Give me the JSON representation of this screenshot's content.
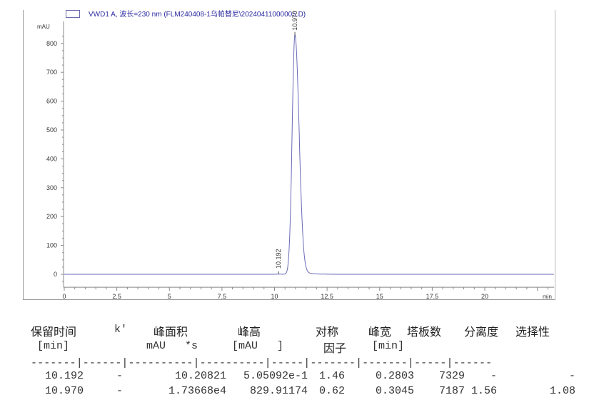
{
  "chart_data": {
    "type": "line",
    "legend": "VWD1 A, 波长=230 nm (FLM240408-1乌帕替尼\\20240411000005.D)",
    "ylabel": "mAU",
    "xlabel": "min",
    "xlim": [
      0,
      23.3
    ],
    "ylim": [
      -45,
      850
    ],
    "xticks": [
      0,
      2.5,
      5,
      7.5,
      10,
      12.5,
      15,
      17.5,
      20
    ],
    "xtick_labels": [
      "0",
      "2.5",
      "5",
      "7.5",
      "10",
      "12.5",
      "15",
      "17.5",
      "20"
    ],
    "yticks": [
      0,
      100,
      200,
      300,
      400,
      500,
      600,
      700,
      800
    ],
    "ytick_labels": [
      "0",
      "100",
      "200",
      "300",
      "400",
      "500",
      "600",
      "700",
      "800"
    ],
    "peaks": [
      {
        "label": "10.192",
        "rt": 10.192,
        "height": 0.505,
        "width": 0.2803
      },
      {
        "label": "10.970",
        "rt": 10.97,
        "height": 829.91,
        "width": 0.3045
      }
    ],
    "line_color": "#6a6ab8"
  },
  "table": {
    "headers": [
      "保留时间",
      "k'",
      "峰面积",
      "峰高",
      "对称",
      "峰宽",
      "塔板数",
      "分离度",
      "选择性"
    ],
    "units": [
      "[min]",
      "mAU   *s",
      "[mAU   ]",
      "因子",
      "[min]"
    ],
    "divider": "-------|------|----------|----------|-----|-------|-------|-----|------",
    "rows": [
      [
        "10.192",
        "-",
        "10.20821",
        "5.05092e-1",
        "1.46",
        "0.2803",
        "7329",
        "-",
        "-"
      ],
      [
        "10.970",
        "-",
        "1.73668e4",
        "829.91174",
        "0.62",
        "0.3045",
        "7187",
        "1.56",
        "1.08"
      ]
    ]
  }
}
